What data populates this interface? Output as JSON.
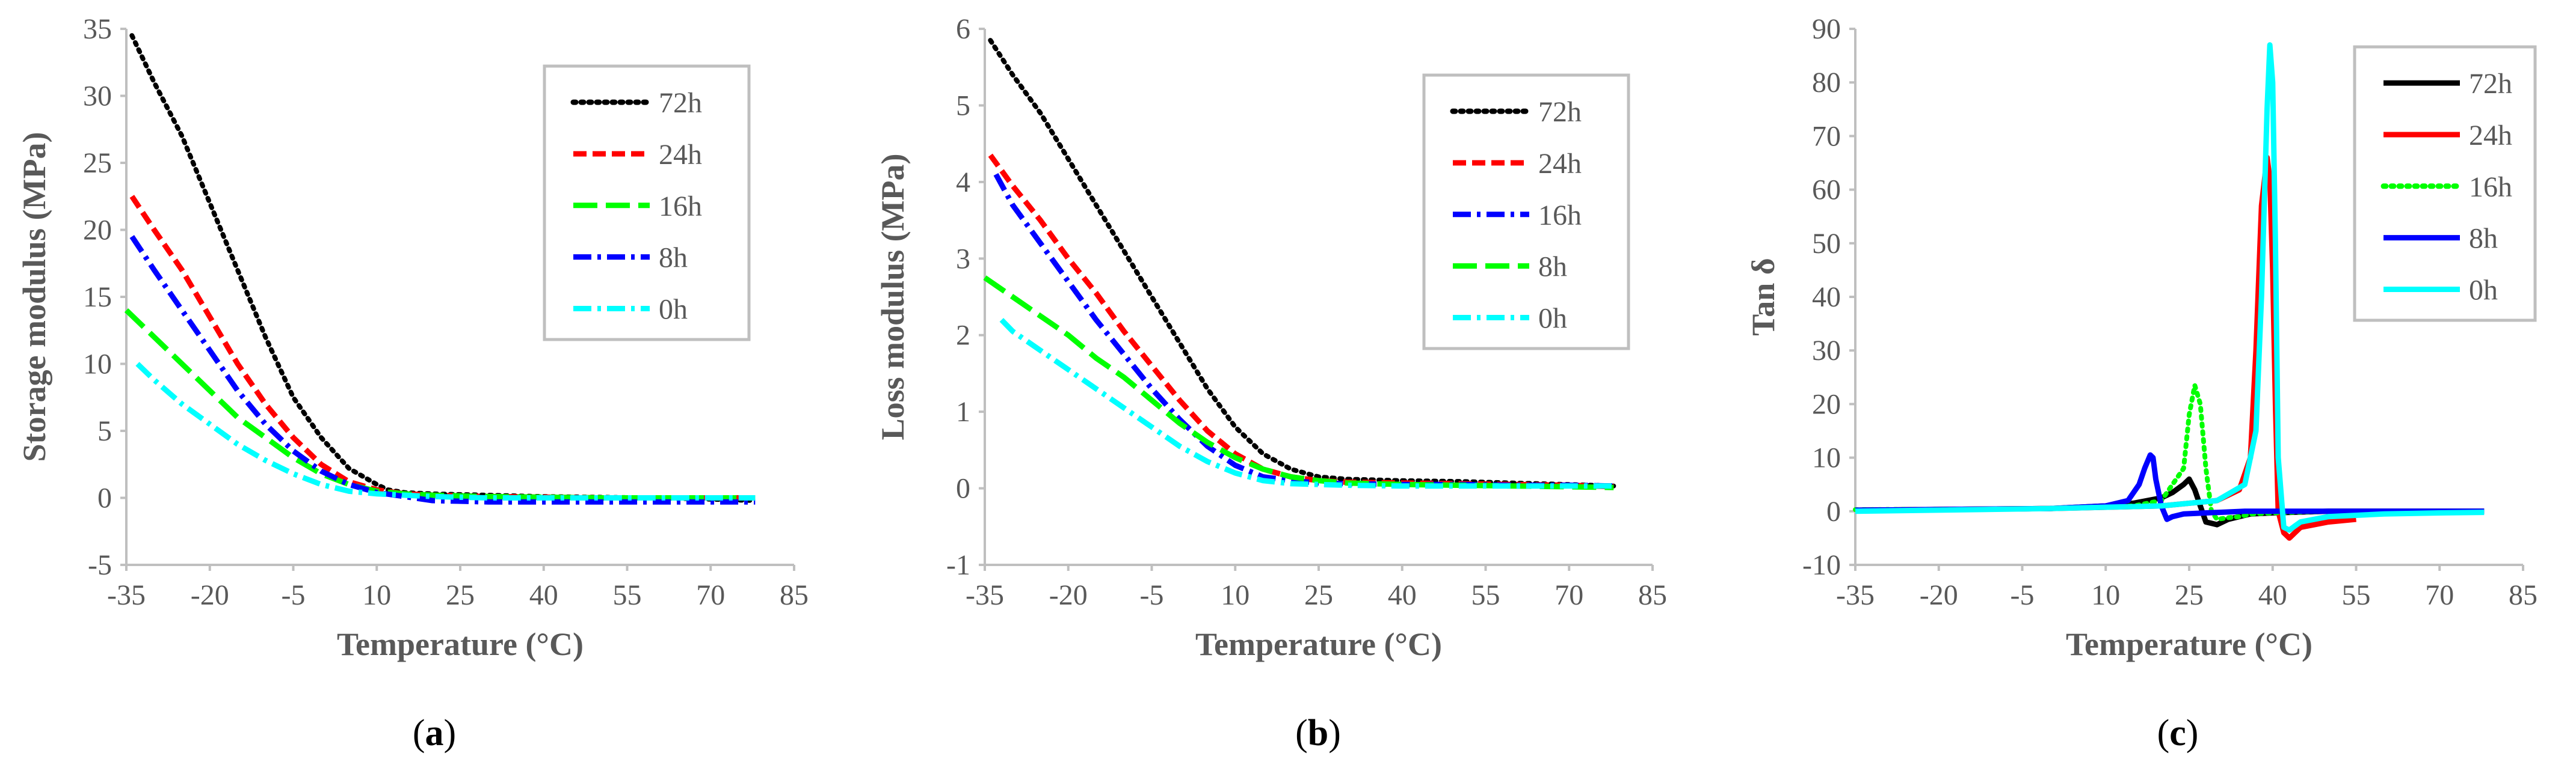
{
  "chart_data": [
    {
      "type": "line",
      "panel_label": "a",
      "title": "",
      "xlabel": "Temperature (°C)",
      "ylabel": "Storage modulus (MPa)",
      "xlim": [
        -35,
        85
      ],
      "ylim": [
        -5,
        35
      ],
      "xticks": [
        -35,
        -20,
        -5,
        10,
        25,
        40,
        55,
        70,
        85
      ],
      "yticks": [
        -5,
        0,
        5,
        10,
        15,
        20,
        25,
        30,
        35
      ],
      "xtick_labels": [
        "-35",
        "-20",
        "-5",
        "10",
        "25",
        "40",
        "55",
        "70",
        "85"
      ],
      "ytick_labels": [
        "-5",
        "0",
        "5",
        "10",
        "15",
        "20",
        "25",
        "30",
        "35"
      ],
      "legend_position": "top-right",
      "series": [
        {
          "name": "72h",
          "color": "#000000",
          "style": "dotted",
          "x": [
            -34,
            -30,
            -25,
            -20,
            -15,
            -10,
            -5,
            0,
            5,
            10,
            12,
            15,
            20,
            30,
            40,
            50,
            60,
            70,
            78
          ],
          "y": [
            34.5,
            31,
            27,
            22,
            17,
            12,
            7.5,
            4.5,
            2.2,
            1,
            0.6,
            0.4,
            0.3,
            0.2,
            0.1,
            0.05,
            0,
            -0.1,
            -0.2
          ]
        },
        {
          "name": "24h",
          "color": "#ff0000",
          "style": "dashed",
          "x": [
            -34,
            -30,
            -25,
            -20,
            -15,
            -10,
            -5,
            0,
            5,
            10,
            15,
            20,
            30,
            40,
            50,
            60,
            70,
            78
          ],
          "y": [
            22.5,
            20,
            17,
            13.5,
            10,
            7,
            4.5,
            2.5,
            1.2,
            0.6,
            0.3,
            0.2,
            0.1,
            0.05,
            0,
            0,
            0,
            0
          ]
        },
        {
          "name": "16h",
          "color": "#00ff00",
          "style": "longdash",
          "x": [
            -35,
            -30,
            -25,
            -20,
            -15,
            -10,
            -5,
            0,
            5,
            10,
            15,
            20,
            30,
            40,
            50,
            60,
            70,
            78
          ],
          "y": [
            14,
            12,
            10,
            8,
            6,
            4.5,
            3,
            1.8,
            1,
            0.5,
            0.3,
            0.2,
            0.1,
            0.05,
            0,
            0,
            0,
            0
          ]
        },
        {
          "name": "8h",
          "color": "#0000ff",
          "style": "dashdot",
          "x": [
            -34,
            -30,
            -25,
            -20,
            -15,
            -10,
            -5,
            0,
            5,
            10,
            15,
            20,
            30,
            40,
            50,
            60,
            70,
            78
          ],
          "y": [
            19.5,
            17,
            14,
            11,
            8,
            5.5,
            3.5,
            2,
            1,
            0.4,
            0.1,
            -0.2,
            -0.3,
            -0.3,
            -0.3,
            -0.3,
            -0.3,
            -0.3
          ]
        },
        {
          "name": "0h",
          "color": "#00ffff",
          "style": "dashdot",
          "x": [
            -33,
            -30,
            -25,
            -20,
            -15,
            -10,
            -5,
            0,
            5,
            10,
            15,
            20,
            30,
            40,
            50,
            60,
            70,
            78
          ],
          "y": [
            10,
            8.8,
            7,
            5.5,
            4,
            2.8,
            1.8,
            1,
            0.5,
            0.3,
            0.2,
            0.1,
            0,
            0,
            0,
            0,
            0,
            0
          ]
        }
      ]
    },
    {
      "type": "line",
      "panel_label": "b",
      "title": "",
      "xlabel": "Temperature (°C)",
      "ylabel": "Loss modulus (MPa)",
      "xlim": [
        -35,
        85
      ],
      "ylim": [
        -1,
        6
      ],
      "xticks": [
        -35,
        -20,
        -5,
        10,
        25,
        40,
        55,
        70,
        85
      ],
      "yticks": [
        -1,
        0,
        1,
        2,
        3,
        4,
        5,
        6
      ],
      "xtick_labels": [
        "-35",
        "-20",
        "-5",
        "10",
        "25",
        "40",
        "55",
        "70",
        "85"
      ],
      "ytick_labels": [
        "-1",
        "0",
        "1",
        "2",
        "3",
        "4",
        "5",
        "6"
      ],
      "legend_position": "top-right",
      "series": [
        {
          "name": "72h",
          "color": "#000000",
          "style": "dotted",
          "x": [
            -34,
            -30,
            -25,
            -20,
            -15,
            -10,
            -5,
            0,
            5,
            10,
            15,
            20,
            25,
            30,
            40,
            50,
            60,
            70,
            78
          ],
          "y": [
            5.85,
            5.4,
            4.9,
            4.3,
            3.7,
            3.1,
            2.5,
            1.9,
            1.3,
            0.8,
            0.45,
            0.25,
            0.15,
            0.12,
            0.1,
            0.09,
            0.07,
            0.05,
            0.03
          ]
        },
        {
          "name": "24h",
          "color": "#ff0000",
          "style": "dashed",
          "x": [
            -34,
            -30,
            -25,
            -20,
            -15,
            -10,
            -5,
            0,
            5,
            10,
            15,
            20,
            25,
            30,
            40,
            50,
            60,
            70,
            78
          ],
          "y": [
            4.35,
            3.95,
            3.5,
            3.0,
            2.55,
            2.05,
            1.6,
            1.15,
            0.75,
            0.45,
            0.25,
            0.15,
            0.1,
            0.08,
            0.07,
            0.06,
            0.05,
            0.04,
            0.02
          ]
        },
        {
          "name": "16h",
          "color": "#0000ff",
          "style": "dashdot",
          "x": [
            -33,
            -30,
            -25,
            -20,
            -15,
            -10,
            -5,
            0,
            5,
            10,
            15,
            20,
            25,
            30,
            40,
            50,
            60,
            70,
            78
          ],
          "y": [
            4.1,
            3.7,
            3.2,
            2.7,
            2.2,
            1.75,
            1.3,
            0.9,
            0.55,
            0.3,
            0.15,
            0.1,
            0.07,
            0.06,
            0.05,
            0.05,
            0.04,
            0.04,
            0.03
          ]
        },
        {
          "name": "8h",
          "color": "#00ff00",
          "style": "longdash",
          "x": [
            -35,
            -30,
            -25,
            -20,
            -15,
            -10,
            -5,
            0,
            5,
            10,
            15,
            20,
            25,
            30,
            40,
            50,
            60,
            70,
            78
          ],
          "y": [
            2.75,
            2.5,
            2.25,
            2.0,
            1.7,
            1.45,
            1.15,
            0.85,
            0.6,
            0.4,
            0.25,
            0.15,
            0.1,
            0.07,
            0.05,
            0.04,
            0.03,
            0.02,
            0.01
          ]
        },
        {
          "name": "0h",
          "color": "#00ffff",
          "style": "dashdot",
          "x": [
            -32,
            -30,
            -25,
            -20,
            -15,
            -10,
            -5,
            0,
            5,
            10,
            15,
            20,
            25,
            30,
            40,
            50,
            60,
            70,
            78
          ],
          "y": [
            2.2,
            2.05,
            1.8,
            1.55,
            1.3,
            1.05,
            0.8,
            0.55,
            0.35,
            0.2,
            0.1,
            0.06,
            0.05,
            0.04,
            0.03,
            0.03,
            0.03,
            0.03,
            0.03
          ]
        }
      ]
    },
    {
      "type": "line",
      "panel_label": "c",
      "title": "",
      "xlabel": "Temperature (°C)",
      "ylabel": "Tan δ",
      "xlim": [
        -35,
        85
      ],
      "ylim": [
        -10,
        90
      ],
      "xticks": [
        -35,
        -20,
        -5,
        10,
        25,
        40,
        55,
        70,
        85
      ],
      "yticks": [
        -10,
        0,
        10,
        20,
        30,
        40,
        50,
        60,
        70,
        80,
        90
      ],
      "xtick_labels": [
        "-35",
        "-20",
        "-5",
        "10",
        "25",
        "40",
        "55",
        "70",
        "85"
      ],
      "ytick_labels": [
        "-10",
        "0",
        "10",
        "20",
        "30",
        "40",
        "50",
        "60",
        "70",
        "80",
        "90"
      ],
      "legend_position": "top-right",
      "series": [
        {
          "name": "72h",
          "color": "#000000",
          "style": "solid",
          "x": [
            -35,
            0,
            10,
            15,
            20,
            22,
            24,
            25,
            26,
            27,
            28,
            30,
            32,
            34,
            36,
            40,
            50,
            60,
            70,
            78
          ],
          "y": [
            0.2,
            0.5,
            1,
            1.5,
            2.5,
            3.5,
            5,
            6,
            4,
            1,
            -2,
            -2.5,
            -1.5,
            -1,
            -0.5,
            -0.3,
            0,
            0,
            0,
            0
          ]
        },
        {
          "name": "24h",
          "color": "#ff0000",
          "style": "solid",
          "x": [
            -35,
            0,
            20,
            30,
            34,
            36,
            37,
            38,
            39,
            39.5,
            40,
            40.5,
            41,
            42,
            43,
            45,
            50,
            55
          ],
          "y": [
            0.2,
            0.5,
            1,
            2,
            4,
            10,
            30,
            57,
            66,
            62,
            45,
            20,
            0,
            -4,
            -5,
            -3,
            -2,
            -1.5
          ]
        },
        {
          "name": "16h",
          "color": "#00ff00",
          "style": "dotted",
          "x": [
            -35,
            0,
            15,
            20,
            24,
            25,
            26,
            27,
            28,
            29,
            30,
            32,
            34,
            36,
            40,
            50,
            60,
            70,
            78
          ],
          "y": [
            0.3,
            0.5,
            1,
            2,
            8,
            18,
            23.5,
            20,
            8,
            0,
            -1.5,
            -1.2,
            -1,
            -0.5,
            -0.3,
            0,
            0,
            0,
            0
          ]
        },
        {
          "name": "8h",
          "color": "#0000ff",
          "style": "solid",
          "x": [
            -35,
            0,
            10,
            14,
            16,
            17,
            18,
            18.5,
            19,
            20,
            21,
            22,
            24,
            28,
            35,
            40,
            50,
            60,
            70,
            78
          ],
          "y": [
            0.2,
            0.5,
            1,
            2,
            5,
            8,
            10.5,
            10,
            6,
            1,
            -1.5,
            -1,
            -0.5,
            -0.3,
            0,
            0,
            0,
            0,
            0,
            0
          ]
        },
        {
          "name": "0h",
          "color": "#00ffff",
          "style": "solid",
          "x": [
            -35,
            0,
            20,
            30,
            35,
            37,
            38,
            39,
            39.5,
            40,
            40.5,
            41,
            42,
            43,
            45,
            50,
            60,
            70,
            78
          ],
          "y": [
            0,
            0.5,
            1,
            2,
            5,
            15,
            40,
            75,
            87,
            80,
            50,
            10,
            -3,
            -3.5,
            -2,
            -1,
            -0.5,
            -0.3,
            -0.2
          ]
        }
      ]
    }
  ]
}
